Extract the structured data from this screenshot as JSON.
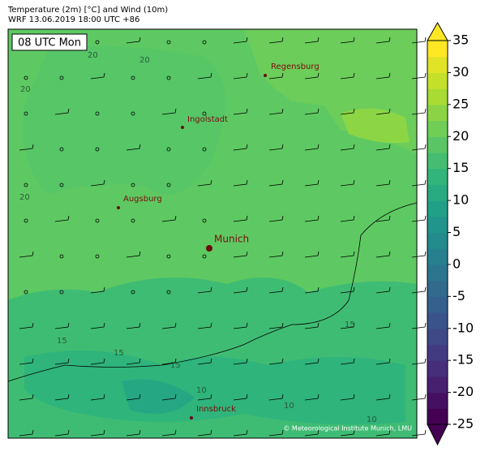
{
  "header": {
    "line1": "Temperature (2m) [°C] and Wind (10m)",
    "line2": "WRF 13.06.2019 18:00 UTC +86"
  },
  "time_label": "08 UTC Mon",
  "cities": [
    "Regensburg",
    "Ingolstadt",
    "Augsburg",
    "Munich",
    "Innsbruck"
  ],
  "contour_labels": [
    20,
    20,
    20,
    20,
    15,
    15,
    15,
    15,
    10,
    10,
    10
  ],
  "colorbar": {
    "lim": [
      -25,
      35
    ],
    "ticks": [
      -25,
      -20,
      -15,
      -10,
      -5,
      0,
      5,
      10,
      15,
      20,
      25,
      30,
      35
    ]
  },
  "credit": "© Meteorological Institute Munich, LMU"
}
